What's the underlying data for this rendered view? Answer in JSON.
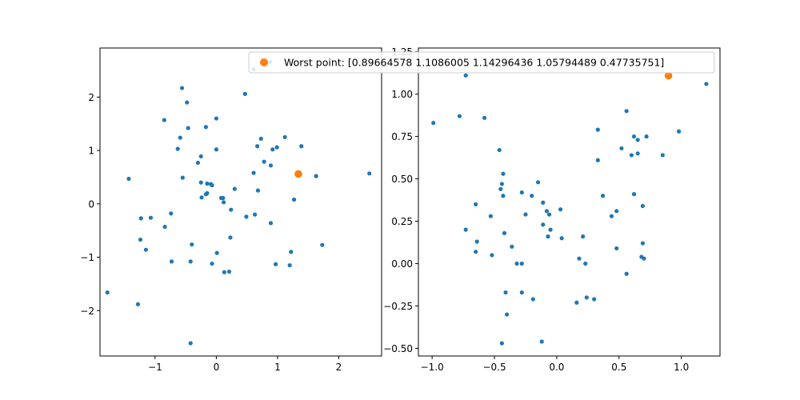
{
  "chart_data": [
    {
      "type": "scatter",
      "title": "",
      "xlabel": "",
      "ylabel": "",
      "xlim": [
        -1.9,
        2.7
      ],
      "ylim": [
        -2.85,
        2.92
      ],
      "xticks": [
        {
          "v": -1,
          "label": "−1"
        },
        {
          "v": 0,
          "label": "0"
        },
        {
          "v": 1,
          "label": "1"
        },
        {
          "v": 2,
          "label": "2"
        }
      ],
      "yticks": [
        {
          "v": -2,
          "label": "−2"
        },
        {
          "v": -1,
          "label": "−1"
        },
        {
          "v": 0,
          "label": "0"
        },
        {
          "v": 1,
          "label": "1"
        },
        {
          "v": 2,
          "label": "2"
        }
      ],
      "grid": false,
      "series": [
        {
          "color": "#1f77b4",
          "points": [
            [
              -1.78,
              -1.66
            ],
            [
              -1.43,
              0.47
            ],
            [
              -1.28,
              -1.88
            ],
            [
              -1.23,
              -0.27
            ],
            [
              -1.24,
              -0.67
            ],
            [
              -1.15,
              -0.86
            ],
            [
              -1.07,
              -0.26
            ],
            [
              -0.85,
              1.57
            ],
            [
              -0.84,
              -0.43
            ],
            [
              -0.74,
              -0.18
            ],
            [
              -0.73,
              -1.08
            ],
            [
              -0.63,
              1.03
            ],
            [
              -0.59,
              1.24
            ],
            [
              -0.56,
              2.17
            ],
            [
              -0.55,
              0.49
            ],
            [
              -0.48,
              1.9
            ],
            [
              -0.46,
              1.42
            ],
            [
              -0.42,
              -2.61
            ],
            [
              -0.42,
              -1.08
            ],
            [
              -0.4,
              -0.76
            ],
            [
              -0.3,
              0.77
            ],
            [
              -0.25,
              0.89
            ],
            [
              -0.25,
              0.4
            ],
            [
              -0.24,
              0.12
            ],
            [
              -0.17,
              1.44
            ],
            [
              -0.17,
              0.18
            ],
            [
              -0.15,
              0.38
            ],
            [
              -0.15,
              0.2
            ],
            [
              -0.09,
              0.37
            ],
            [
              -0.07,
              0.35
            ],
            [
              -0.07,
              -1.12
            ],
            [
              0.0,
              1.6
            ],
            [
              0.0,
              1.02
            ],
            [
              0.01,
              -0.92
            ],
            [
              0.08,
              0.11
            ],
            [
              0.11,
              0.11
            ],
            [
              0.12,
              0.03
            ],
            [
              0.13,
              -1.28
            ],
            [
              0.21,
              -1.27
            ],
            [
              0.23,
              -0.63
            ],
            [
              0.24,
              -0.11
            ],
            [
              0.3,
              0.28
            ],
            [
              0.47,
              2.06
            ],
            [
              0.49,
              -0.24
            ],
            [
              0.61,
              2.52
            ],
            [
              0.61,
              0.58
            ],
            [
              0.63,
              -0.2
            ],
            [
              0.67,
              1.08
            ],
            [
              0.68,
              0.25
            ],
            [
              0.73,
              1.22
            ],
            [
              0.78,
              0.79
            ],
            [
              0.89,
              -0.36
            ],
            [
              0.89,
              0.72
            ],
            [
              0.92,
              1.02
            ],
            [
              0.97,
              -1.13
            ],
            [
              0.99,
              1.06
            ],
            [
              1.12,
              1.25
            ],
            [
              1.2,
              -1.15
            ],
            [
              1.22,
              -0.9
            ],
            [
              1.27,
              0.08
            ],
            [
              1.39,
              1.08
            ],
            [
              1.63,
              0.52
            ],
            [
              1.73,
              -0.77
            ],
            [
              2.5,
              0.57
            ],
            [
              0.88,
              2.66
            ]
          ]
        }
      ],
      "highlight": {
        "label": "Worst point: [0.89664578 1.1086005  1.14296436 1.05794489 0.47735751]",
        "color": "#ff7f0e",
        "point": [
          1.34,
          0.56
        ]
      }
    },
    {
      "type": "scatter",
      "title": "",
      "xlabel": "",
      "ylabel": "",
      "xlim": [
        -1.11,
        1.31
      ],
      "ylim": [
        -0.545,
        1.272
      ],
      "xticks": [
        {
          "v": -1.0,
          "label": "−1.0"
        },
        {
          "v": -0.5,
          "label": "−0.5"
        },
        {
          "v": 0.0,
          "label": "0.0"
        },
        {
          "v": 0.5,
          "label": "0.5"
        },
        {
          "v": 1.0,
          "label": "1.0"
        }
      ],
      "yticks": [
        {
          "v": -0.5,
          "label": "−0.50"
        },
        {
          "v": -0.25,
          "label": "−0.25"
        },
        {
          "v": 0.0,
          "label": "0.00"
        },
        {
          "v": 0.25,
          "label": "0.25"
        },
        {
          "v": 0.5,
          "label": "0.50"
        },
        {
          "v": 0.75,
          "label": "0.75"
        },
        {
          "v": 1.0,
          "label": "1.00"
        },
        {
          "v": 1.25,
          "label": "1.25"
        }
      ],
      "grid": false,
      "series": [
        {
          "color": "#1f77b4",
          "points": [
            [
              -0.99,
              0.83
            ],
            [
              -0.78,
              0.87
            ],
            [
              -0.73,
              1.11
            ],
            [
              -0.73,
              0.2
            ],
            [
              -0.65,
              0.35
            ],
            [
              -0.64,
              0.13
            ],
            [
              -0.65,
              0.07
            ],
            [
              -0.58,
              0.86
            ],
            [
              -0.53,
              0.28
            ],
            [
              -0.52,
              0.05
            ],
            [
              -0.46,
              0.67
            ],
            [
              -0.45,
              0.44
            ],
            [
              -0.44,
              0.47
            ],
            [
              -0.43,
              0.53
            ],
            [
              -0.43,
              0.4
            ],
            [
              -0.42,
              0.18
            ],
            [
              -0.41,
              -0.17
            ],
            [
              -0.4,
              -0.3
            ],
            [
              -0.44,
              -0.47
            ],
            [
              -0.36,
              0.1
            ],
            [
              -0.32,
              0.0
            ],
            [
              -0.28,
              0.42
            ],
            [
              -0.28,
              0.0
            ],
            [
              -0.28,
              -0.17
            ],
            [
              -0.25,
              0.29
            ],
            [
              -0.2,
              0.4
            ],
            [
              -0.19,
              -0.21
            ],
            [
              -0.15,
              0.48
            ],
            [
              -0.12,
              -0.46
            ],
            [
              -0.11,
              0.36
            ],
            [
              -0.11,
              0.23
            ],
            [
              -0.08,
              0.31
            ],
            [
              -0.07,
              0.16
            ],
            [
              -0.06,
              0.29
            ],
            [
              -0.05,
              0.2
            ],
            [
              0.03,
              0.32
            ],
            [
              0.04,
              0.15
            ],
            [
              0.16,
              -0.23
            ],
            [
              0.18,
              0.03
            ],
            [
              0.21,
              0.16
            ],
            [
              0.23,
              0.0
            ],
            [
              0.24,
              -0.2
            ],
            [
              0.3,
              -0.21
            ],
            [
              0.33,
              0.61
            ],
            [
              0.33,
              0.79
            ],
            [
              0.37,
              0.4
            ],
            [
              0.44,
              0.28
            ],
            [
              0.48,
              0.31
            ],
            [
              0.48,
              0.09
            ],
            [
              0.52,
              0.68
            ],
            [
              0.56,
              0.9
            ],
            [
              0.56,
              -0.06
            ],
            [
              0.6,
              0.64
            ],
            [
              0.62,
              0.75
            ],
            [
              0.62,
              0.41
            ],
            [
              0.65,
              0.65
            ],
            [
              0.65,
              0.73
            ],
            [
              0.68,
              0.04
            ],
            [
              0.69,
              0.34
            ],
            [
              0.69,
              0.12
            ],
            [
              0.7,
              0.03
            ],
            [
              0.72,
              0.75
            ],
            [
              0.85,
              0.64
            ],
            [
              0.98,
              0.78
            ],
            [
              1.2,
              1.06
            ]
          ]
        }
      ],
      "highlight": {
        "color": "#ff7f0e",
        "point": [
          0.897,
          1.109
        ]
      }
    }
  ]
}
